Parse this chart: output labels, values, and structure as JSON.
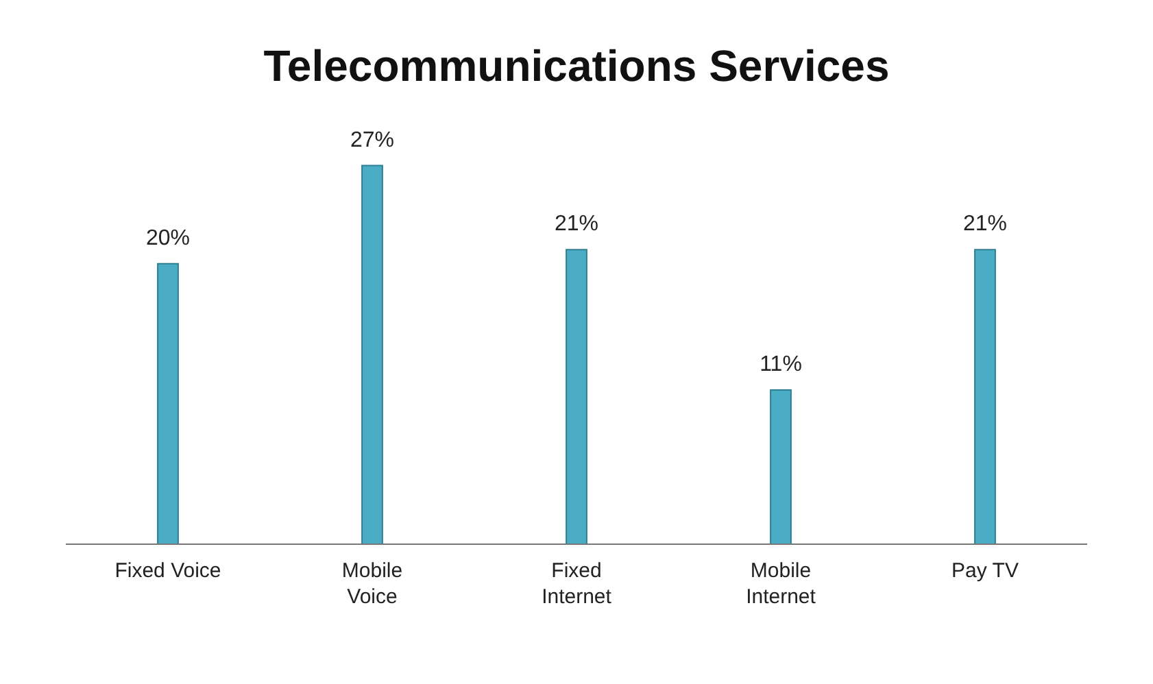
{
  "chart_data": {
    "type": "bar",
    "title": "Telecommunications Services",
    "categories": [
      "Fixed Voice",
      "Mobile Voice",
      "Fixed Internet",
      "Mobile Internet",
      "Pay TV"
    ],
    "values": [
      20,
      27,
      21,
      11,
      21
    ],
    "value_labels": [
      "20%",
      "27%",
      "21%",
      "11%",
      "21%"
    ],
    "color": "#4bacc6"
  }
}
